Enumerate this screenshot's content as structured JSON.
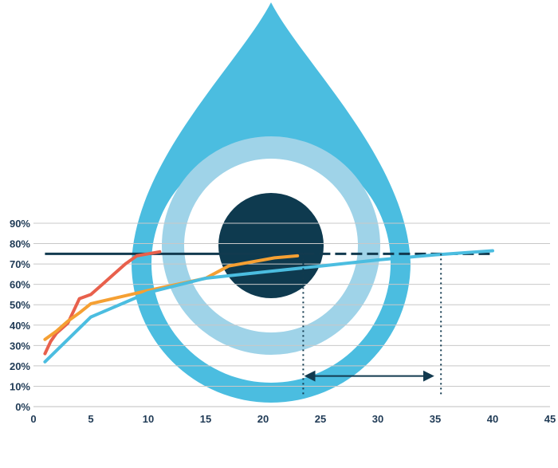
{
  "chart_data": {
    "type": "line",
    "x_ticks": [
      0,
      5,
      10,
      15,
      20,
      25,
      30,
      35,
      40,
      45
    ],
    "y_ticks": [
      0,
      10,
      20,
      30,
      40,
      50,
      60,
      70,
      80,
      90
    ],
    "x_tick_labels": [
      "0",
      "5",
      "10",
      "15",
      "20",
      "25",
      "30",
      "35",
      "40",
      "45"
    ],
    "y_tick_labels": [
      "0%",
      "10%",
      "20%",
      "30%",
      "40%",
      "50%",
      "60%",
      "70%",
      "80%",
      "90%"
    ],
    "xlim": [
      0,
      45
    ],
    "ylim": [
      0,
      90
    ],
    "grid": "horizontal",
    "series": [
      {
        "color": "#e8604c",
        "points": [
          [
            1,
            26
          ],
          [
            1.5,
            32
          ],
          [
            2,
            36
          ],
          [
            3,
            41
          ],
          [
            4,
            53
          ],
          [
            5,
            55
          ],
          [
            6,
            60
          ],
          [
            7,
            65
          ],
          [
            8,
            70
          ],
          [
            9,
            74
          ],
          [
            10,
            75
          ],
          [
            11,
            76
          ]
        ]
      },
      {
        "color": "#f5a033",
        "points": [
          [
            1,
            33
          ],
          [
            2,
            37
          ],
          [
            3,
            42
          ],
          [
            4,
            46
          ],
          [
            5,
            50.5
          ],
          [
            10,
            57
          ],
          [
            15,
            63
          ],
          [
            17,
            69
          ],
          [
            20,
            72
          ],
          [
            21,
            73
          ],
          [
            23,
            74
          ]
        ]
      },
      {
        "color": "#4bbde0",
        "points": [
          [
            1,
            22
          ],
          [
            5,
            44
          ],
          [
            10,
            56
          ],
          [
            15,
            63
          ],
          [
            20,
            66
          ],
          [
            25,
            69
          ],
          [
            30,
            72
          ],
          [
            35,
            74.5
          ],
          [
            40,
            76.5
          ]
        ]
      }
    ],
    "reference_line": {
      "y": 75,
      "color": "#123a4f",
      "solid_from": 1,
      "dashed_from": 23.5,
      "to": 40
    },
    "markers": {
      "vertical_lines_x": [
        23.5,
        35.5
      ],
      "color": "#123a4f",
      "double_arrow": {
        "from": 23.5,
        "to": 35,
        "y": 15
      }
    },
    "background_logo": {
      "drop_color": "#4bbde0",
      "ring_color": "#9fd3e8",
      "center_color": "#0e3a4f"
    }
  }
}
